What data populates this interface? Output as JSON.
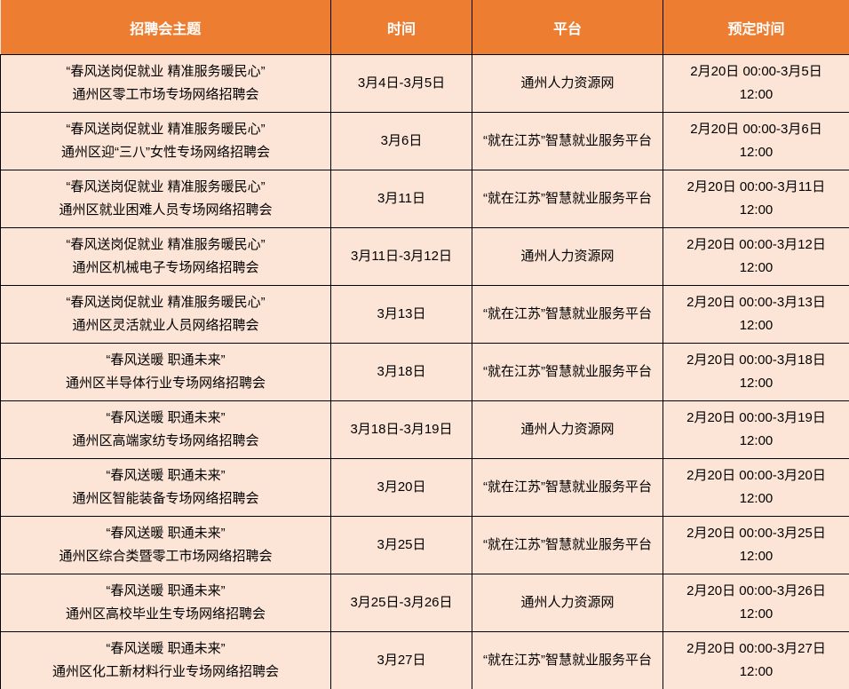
{
  "colors": {
    "header_bg": "#ED7D31",
    "header_text": "#FFFFFF",
    "row_bg": "#FCE4D6",
    "body_text": "#000000",
    "border": "#000000"
  },
  "table": {
    "headers": {
      "theme": "招聘会主题",
      "time": "时间",
      "platform": "平台",
      "booking": "预定时间"
    },
    "rows": [
      {
        "theme": "“春风送岗促就业 精准服务暖民心”\n通州区零工市场专场网络招聘会",
        "time": "3月4日-3月5日",
        "platform": "通州人力资源网",
        "booking": "2月20日 00:00-3月5日 12:00"
      },
      {
        "theme": "“春风送岗促就业 精准服务暖民心”\n通州区迎“三八”女性专场网络招聘会",
        "time": "3月6日",
        "platform": "“就在江苏”智慧就业服务平台",
        "booking": "2月20日 00:00-3月6日 12:00"
      },
      {
        "theme": "“春风送岗促就业 精准服务暖民心”\n通州区就业困难人员专场网络招聘会",
        "time": "3月11日",
        "platform": "“就在江苏”智慧就业服务平台",
        "booking": "2月20日 00:00-3月11日 12:00"
      },
      {
        "theme": "“春风送岗促就业 精准服务暖民心”\n通州区机械电子专场网络招聘会",
        "time": "3月11日-3月12日",
        "platform": "通州人力资源网",
        "booking": "2月20日 00:00-3月12日 12:00"
      },
      {
        "theme": "“春风送岗促就业 精准服务暖民心”\n通州区灵活就业人员网络招聘会",
        "time": "3月13日",
        "platform": "“就在江苏”智慧就业服务平台",
        "booking": "2月20日 00:00-3月13日 12:00"
      },
      {
        "theme": "“春风送暖 职通未来”\n通州区半导体行业专场网络招聘会",
        "time": "3月18日",
        "platform": "“就在江苏”智慧就业服务平台",
        "booking": "2月20日 00:00-3月18日 12:00"
      },
      {
        "theme": "“春风送暖 职通未来”\n通州区高端家纺专场网络招聘会",
        "time": "3月18日-3月19日",
        "platform": "通州人力资源网",
        "booking": "2月20日 00:00-3月19日 12:00"
      },
      {
        "theme": "“春风送暖 职通未来”\n通州区智能装备专场网络招聘会",
        "time": "3月20日",
        "platform": "“就在江苏”智慧就业服务平台",
        "booking": "2月20日 00:00-3月20日 12:00"
      },
      {
        "theme": "“春风送暖 职通未来”\n通州区综合类暨零工市场网络招聘会",
        "time": "3月25日",
        "platform": "“就在江苏”智慧就业服务平台",
        "booking": "2月20日 00:00-3月25日 12:00"
      },
      {
        "theme": "“春风送暖 职通未来”\n通州区高校毕业生专场网络招聘会",
        "time": "3月25日-3月26日",
        "platform": "通州人力资源网",
        "booking": "2月20日 00:00-3月26日 12:00"
      },
      {
        "theme": "“春风送暖 职通未来”\n通州区化工新材料行业专场网络招聘会",
        "time": "3月27日",
        "platform": "“就在江苏”智慧就业服务平台",
        "booking": "2月20日 00:00-3月27日 12:00"
      }
    ]
  }
}
